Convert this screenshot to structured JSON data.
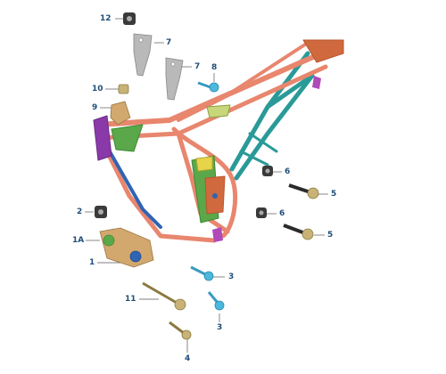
{
  "callouts": {
    "c12": "12",
    "c7a": "7",
    "c7b": "7",
    "c8": "8",
    "c10": "10",
    "c9": "9",
    "c6a": "6",
    "c5a": "5",
    "c2": "2",
    "c6b": "6",
    "c5b": "5",
    "c1a": "1A",
    "c1": "1",
    "c3a": "3",
    "c11": "11",
    "c3b": "3",
    "c4": "4"
  },
  "colors": {
    "frame_main": "#e8866e",
    "frame_teal": "#2a9a98",
    "frame_blue": "#2f64b4",
    "frame_purple": "#8a3aa8",
    "frame_green": "#5aa84a",
    "frame_orange": "#d06a3e",
    "bracket_gray": "#b9b9b9",
    "bolt_cyan": "#4bb8dc",
    "bolt_olive": "#c8b276",
    "nut_dark": "#3a3a3a",
    "callout_text": "#1f4e79"
  }
}
